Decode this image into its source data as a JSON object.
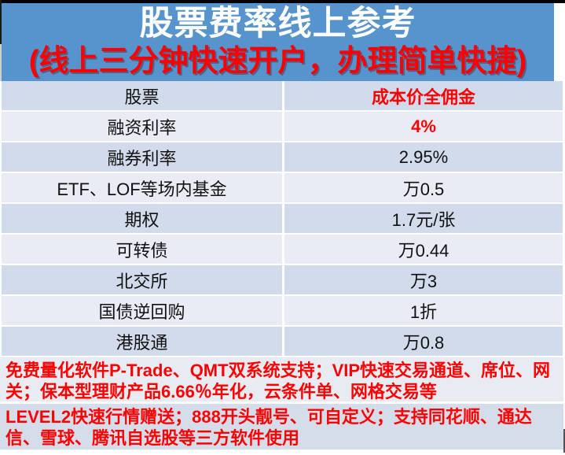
{
  "header": {
    "title": "股票费率线上参考",
    "subtitle": "(线上三分钟快速开户，办理简单快捷)"
  },
  "table": {
    "rows": [
      {
        "label": "股票",
        "value": "成本价全佣金"
      },
      {
        "label": "融资利率",
        "value": "4%"
      },
      {
        "label": "融券利率",
        "value": "2.95%"
      },
      {
        "label": "ETF、LOF等场内基金",
        "value": "万0.5"
      },
      {
        "label": "期权",
        "value": "1.7元/张"
      },
      {
        "label": "可转债",
        "value": "万0.44"
      },
      {
        "label": "北交所",
        "value": "万3"
      },
      {
        "label": "国债逆回购",
        "value": "1折"
      },
      {
        "label": "港股通",
        "value": "万0.8"
      }
    ]
  },
  "notes": {
    "line1": "免费量化软件P-Trade、QMT双系统支持；VIP快速交易通道、席位、网关；保本型理财产品6.66％年化，云条件单、网格交易等",
    "line2": "LEVEL2快速行情赠送；888开头靓号、可自定义；支持同花顺、通达信、雪球、腾讯自选股等三方软件使用"
  },
  "colors": {
    "header_bg": "#5793CC",
    "accent_red": "#FE0000",
    "title_white": "#FFFFFF",
    "row_dark": "#D2DBEB",
    "row_light": "#E9ECF5",
    "note1_bg": "#E9EBF3",
    "note2_bg": "#D5DCEA",
    "top_strip": "#000000"
  }
}
